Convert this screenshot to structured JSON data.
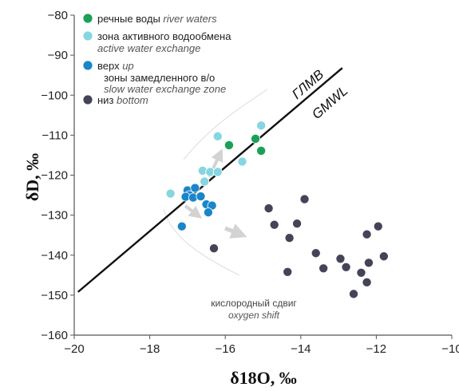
{
  "chart_data": {
    "type": "scatter",
    "xlabel": "δ18O, ‰",
    "ylabel": "δD, ‰",
    "xlim": [
      -20,
      -10
    ],
    "ylim": [
      -160,
      -80
    ],
    "xticks": [
      -20,
      -18,
      -16,
      -14,
      -12,
      -10
    ],
    "yticks": [
      -160,
      -150,
      -140,
      -130,
      -120,
      -110,
      -100,
      -90,
      -80
    ],
    "grid": false,
    "legend_position": "top-left",
    "reference_line": {
      "labels": [
        "ГЛМВ",
        "GMWL"
      ],
      "slope": 8,
      "intercept": 10,
      "x_range": [
        -19.9,
        -12.9
      ]
    },
    "annotation": {
      "text_ru": "кислородный сдвиг",
      "text_en": "oxygen shift"
    },
    "series": [
      {
        "name": "речные воды river waters",
        "name_ru": "речные воды",
        "name_en": "river waters",
        "color": "#1aa155",
        "points": [
          [
            -15.9,
            -112.5
          ],
          [
            -15.2,
            -110.9
          ],
          [
            -15.05,
            -113.9
          ]
        ]
      },
      {
        "name": "зона активного водообмена active water exchange",
        "name_ru": "зона активного водообмена",
        "name_en": "active water exchange",
        "color": "#86d6e2",
        "points": [
          [
            -16.2,
            -110.3
          ],
          [
            -15.05,
            -107.6
          ],
          [
            -15.55,
            -116.6
          ],
          [
            -16.6,
            -118.9
          ],
          [
            -16.4,
            -119.2
          ],
          [
            -16.2,
            -119.2
          ],
          [
            -17.45,
            -124.6
          ],
          [
            -16.55,
            -121.6
          ]
        ]
      },
      {
        "name": "верх up",
        "name_ru": "верх",
        "name_en": "up",
        "group_label_ru": "зоны замедленного в/о",
        "group_label_en": "slow water exchange zone",
        "color": "#1a86c9",
        "points": [
          [
            -17.0,
            -123.8
          ],
          [
            -16.8,
            -123.2
          ],
          [
            -16.95,
            -125.0
          ],
          [
            -17.05,
            -125.4
          ],
          [
            -16.85,
            -125.6
          ],
          [
            -16.65,
            -125.3
          ],
          [
            -16.5,
            -127.3
          ],
          [
            -16.35,
            -127.6
          ],
          [
            -16.45,
            -129.3
          ],
          [
            -17.15,
            -132.8
          ]
        ]
      },
      {
        "name": "низ bottom",
        "name_ru": "низ",
        "name_en": "bottom",
        "color": "#444459",
        "points": [
          [
            -16.3,
            -138.3
          ],
          [
            -14.85,
            -128.3
          ],
          [
            -14.3,
            -135.7
          ],
          [
            -14.1,
            -132.1
          ],
          [
            -14.7,
            -132.4
          ],
          [
            -13.9,
            -126.0
          ],
          [
            -14.35,
            -144.2
          ],
          [
            -13.6,
            -139.5
          ],
          [
            -13.4,
            -143.3
          ],
          [
            -12.95,
            -140.9
          ],
          [
            -12.6,
            -149.7
          ],
          [
            -12.4,
            -144.4
          ],
          [
            -12.2,
            -141.9
          ],
          [
            -12.25,
            -146.8
          ],
          [
            -12.25,
            -134.8
          ],
          [
            -11.95,
            -132.8
          ],
          [
            -11.8,
            -140.3
          ],
          [
            -12.8,
            -143.0
          ]
        ]
      }
    ]
  }
}
